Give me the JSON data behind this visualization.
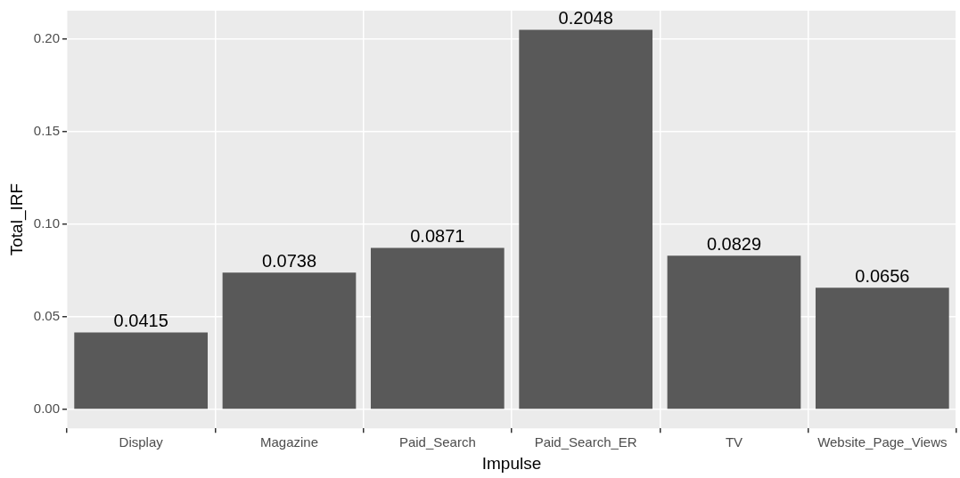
{
  "chart_data": {
    "type": "bar",
    "xlabel": "Impulse",
    "ylabel": "Total_IRF",
    "categories": [
      "Display",
      "Magazine",
      "Paid_Search",
      "Paid_Search_ER",
      "TV",
      "Website_Page_Views"
    ],
    "values": [
      0.0415,
      0.0738,
      0.0871,
      0.2048,
      0.0829,
      0.0656
    ],
    "color": "#595959",
    "ylim": [
      -0.0102,
      0.2151
    ],
    "yticks": [
      {
        "value": 0,
        "label": "0.00"
      },
      {
        "value": 0.05,
        "label": "0.05"
      },
      {
        "value": 0.1,
        "label": "0.10"
      },
      {
        "value": 0.15,
        "label": "0.15"
      },
      {
        "value": 0.2,
        "label": "0.20"
      }
    ],
    "grid": true,
    "legend": false,
    "data_labels": true
  }
}
